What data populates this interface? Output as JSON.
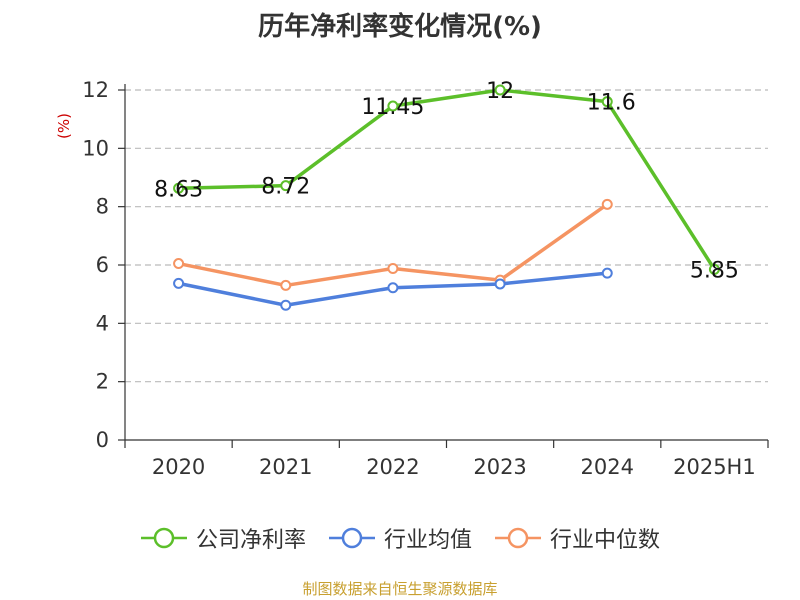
{
  "title": "历年净利率变化情况(%)",
  "source_note": "制图数据来自恒生聚源数据库",
  "colors": {
    "company": "#5cbf2a",
    "industry_avg": "#4f7fdc",
    "industry_median": "#f59462",
    "ylabel": "#cc0000",
    "grid": "#bbbbbb",
    "axis": "#333333"
  },
  "legend": [
    {
      "label": "公司净利率",
      "color": "#5cbf2a"
    },
    {
      "label": "行业均值",
      "color": "#4f7fdc"
    },
    {
      "label": "行业中位数",
      "color": "#f59462"
    }
  ],
  "chart_data": {
    "type": "line",
    "title": "历年净利率变化情况(%)",
    "ylabel": "(%)",
    "xlabel": "",
    "categories": [
      "2020",
      "2021",
      "2022",
      "2023",
      "2024",
      "2025H1"
    ],
    "ylim": [
      0,
      12
    ],
    "yticks": [
      0,
      2,
      4,
      6,
      8,
      10,
      12
    ],
    "grid": true,
    "legend_position": "bottom",
    "series": [
      {
        "name": "公司净利率",
        "color": "#5cbf2a",
        "values": [
          8.63,
          8.72,
          11.45,
          12,
          11.6,
          5.85
        ],
        "labels": [
          "8.63",
          "8.72",
          "11.45",
          "12",
          "11.6",
          "5.85"
        ]
      },
      {
        "name": "行业均值",
        "color": "#4f7fdc",
        "values": [
          5.37,
          4.62,
          5.22,
          5.35,
          5.72,
          null
        ]
      },
      {
        "name": "行业中位数",
        "color": "#f59462",
        "values": [
          6.05,
          5.3,
          5.88,
          5.48,
          8.08,
          null
        ]
      }
    ]
  }
}
